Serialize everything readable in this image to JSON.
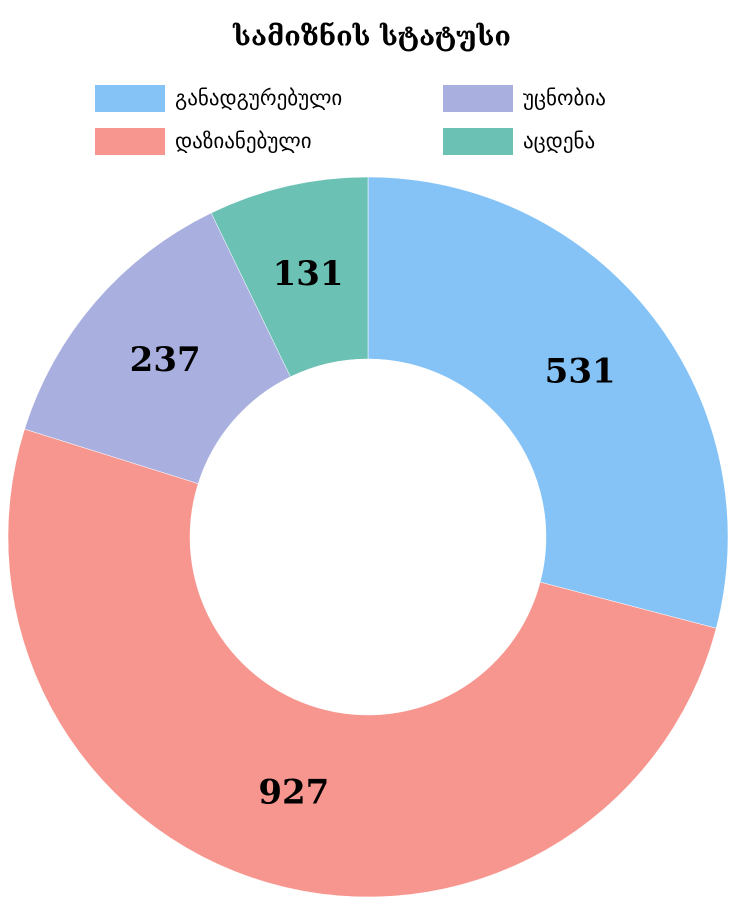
{
  "chart_data": {
    "type": "donut",
    "title": "სამიზნის სტატუსი",
    "categories": [
      "განადგურებული",
      "დაზიანებული",
      "უცნობია",
      "აცდენა"
    ],
    "values": [
      531,
      927,
      237,
      131
    ],
    "colors": [
      "#85c3f7",
      "#f7968e",
      "#a9afdf",
      "#6cc1b5"
    ],
    "legend": "top"
  }
}
